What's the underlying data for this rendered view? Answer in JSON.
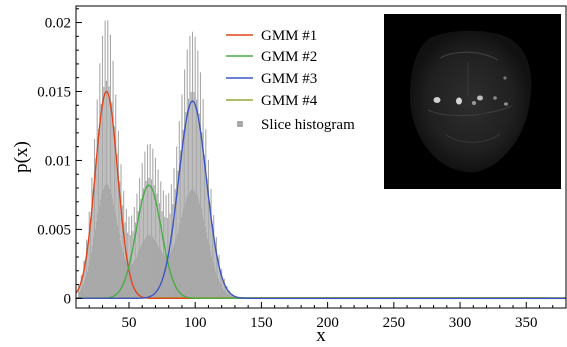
{
  "chart_data": {
    "type": "line",
    "xlabel": "x",
    "ylabel": "p(x)",
    "xlim": [
      10,
      380
    ],
    "ylim": [
      -0.0007,
      0.0212
    ],
    "x_ticks": [
      50,
      100,
      150,
      200,
      250,
      300,
      350
    ],
    "y_ticks": [
      0,
      0.005,
      0.01,
      0.015,
      0.02
    ],
    "y_tick_labels": [
      "0",
      "0.005",
      "0.01",
      "0.015",
      "0.02"
    ],
    "grid": false,
    "legend_position": "top-center",
    "series": [
      {
        "name": "GMM #1",
        "type": "line",
        "color": "#e0441c",
        "gaussian": {
          "mean": 33,
          "std": 8.5,
          "peak": 0.015
        }
      },
      {
        "name": "GMM #2",
        "type": "line",
        "color": "#4aab47",
        "gaussian": {
          "mean": 65,
          "std": 9.5,
          "peak": 0.0082
        }
      },
      {
        "name": "GMM #3",
        "type": "line",
        "color": "#3b55c4",
        "gaussian": {
          "mean": 98,
          "std": 10.5,
          "peak": 0.0143
        }
      },
      {
        "name": "GMM #4",
        "type": "line",
        "color": "#9aa63a",
        "gaussian": {
          "mean": 250,
          "std": 200,
          "peak": 5e-05
        }
      },
      {
        "name": "Slice histogram",
        "type": "histogram",
        "color": "#a9a9a9",
        "x_range": [
          12,
          145
        ]
      }
    ],
    "inset": {
      "type": "image",
      "description_label": "",
      "background": "#000000"
    }
  }
}
